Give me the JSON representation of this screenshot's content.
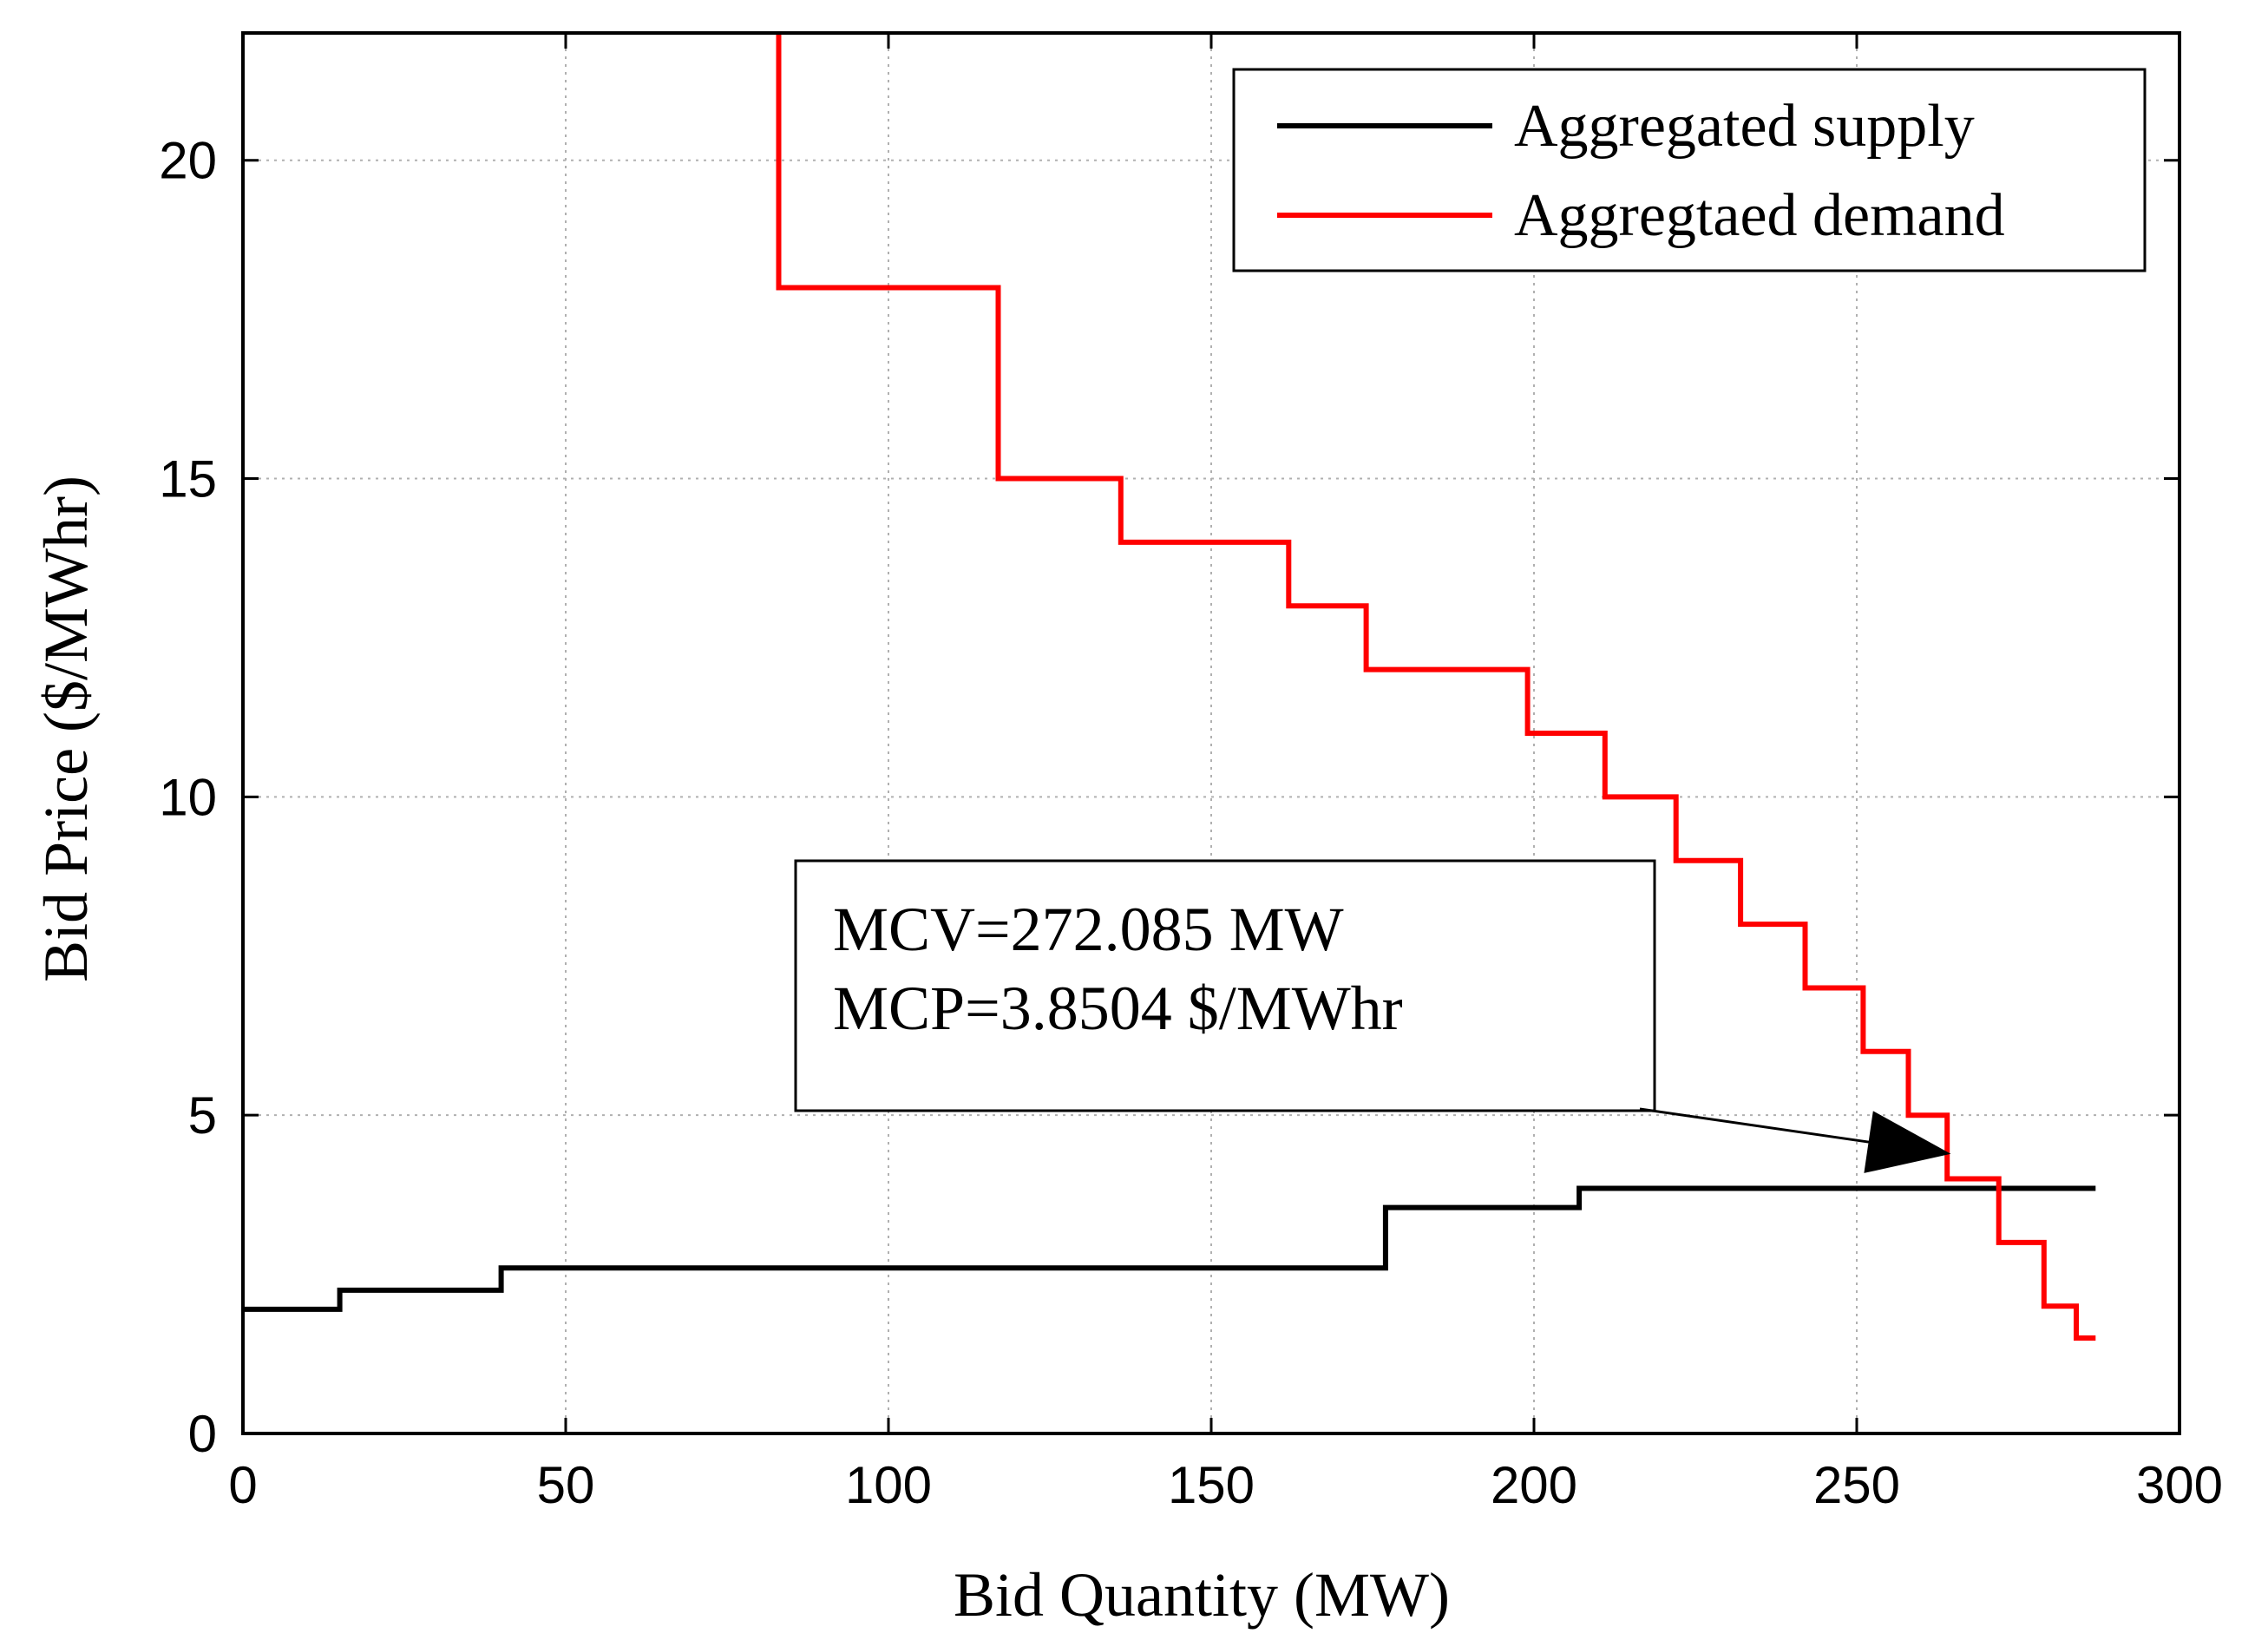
{
  "chart_data": {
    "type": "line",
    "title": "",
    "xlabel": "Bid Quantity (MW)",
    "ylabel": "Bid Price ($/MWhr)",
    "xlim": [
      0,
      300
    ],
    "ylim": [
      0,
      22
    ],
    "xticks": [
      0,
      50,
      100,
      150,
      200,
      250,
      300
    ],
    "yticks": [
      0,
      5,
      10,
      15,
      20
    ],
    "grid": true,
    "legend_position": "top-right",
    "series": [
      {
        "name": "Aggregated supply",
        "color": "#000000",
        "step": true,
        "points": [
          [
            0,
            1.95
          ],
          [
            15,
            1.95
          ],
          [
            15,
            2.25
          ],
          [
            40,
            2.25
          ],
          [
            40,
            2.6
          ],
          [
            177,
            2.6
          ],
          [
            177,
            3.55
          ],
          [
            207,
            3.55
          ],
          [
            207,
            3.85
          ],
          [
            287,
            3.85
          ]
        ]
      },
      {
        "name": "Aggregtaed demand",
        "color": "#ff0000",
        "step": true,
        "points": [
          [
            83,
            22
          ],
          [
            83,
            18
          ],
          [
            117,
            18
          ],
          [
            117,
            15
          ],
          [
            136,
            15
          ],
          [
            136,
            14
          ],
          [
            162,
            14
          ],
          [
            162,
            13
          ],
          [
            174,
            13
          ],
          [
            174,
            12
          ],
          [
            199,
            12
          ],
          [
            199,
            11
          ],
          [
            211,
            11
          ],
          [
            211,
            10
          ],
          [
            222,
            10
          ],
          [
            222,
            9
          ],
          [
            232,
            9
          ],
          [
            232,
            8
          ],
          [
            242,
            8
          ],
          [
            242,
            7
          ],
          [
            251,
            7
          ],
          [
            251,
            6
          ],
          [
            258,
            6
          ],
          [
            258,
            5
          ],
          [
            264,
            5
          ],
          [
            264,
            4
          ],
          [
            272,
            4
          ],
          [
            272,
            3
          ],
          [
            279,
            3
          ],
          [
            279,
            2
          ],
          [
            284,
            2
          ],
          [
            284,
            1.5
          ],
          [
            287,
            1.5
          ]
        ]
      }
    ],
    "annotation": {
      "lines": [
        "MCV=272.085 MW",
        "MCP=3.8504 $/MWhr"
      ],
      "arrow_target": [
        264,
        4.4
      ]
    }
  }
}
